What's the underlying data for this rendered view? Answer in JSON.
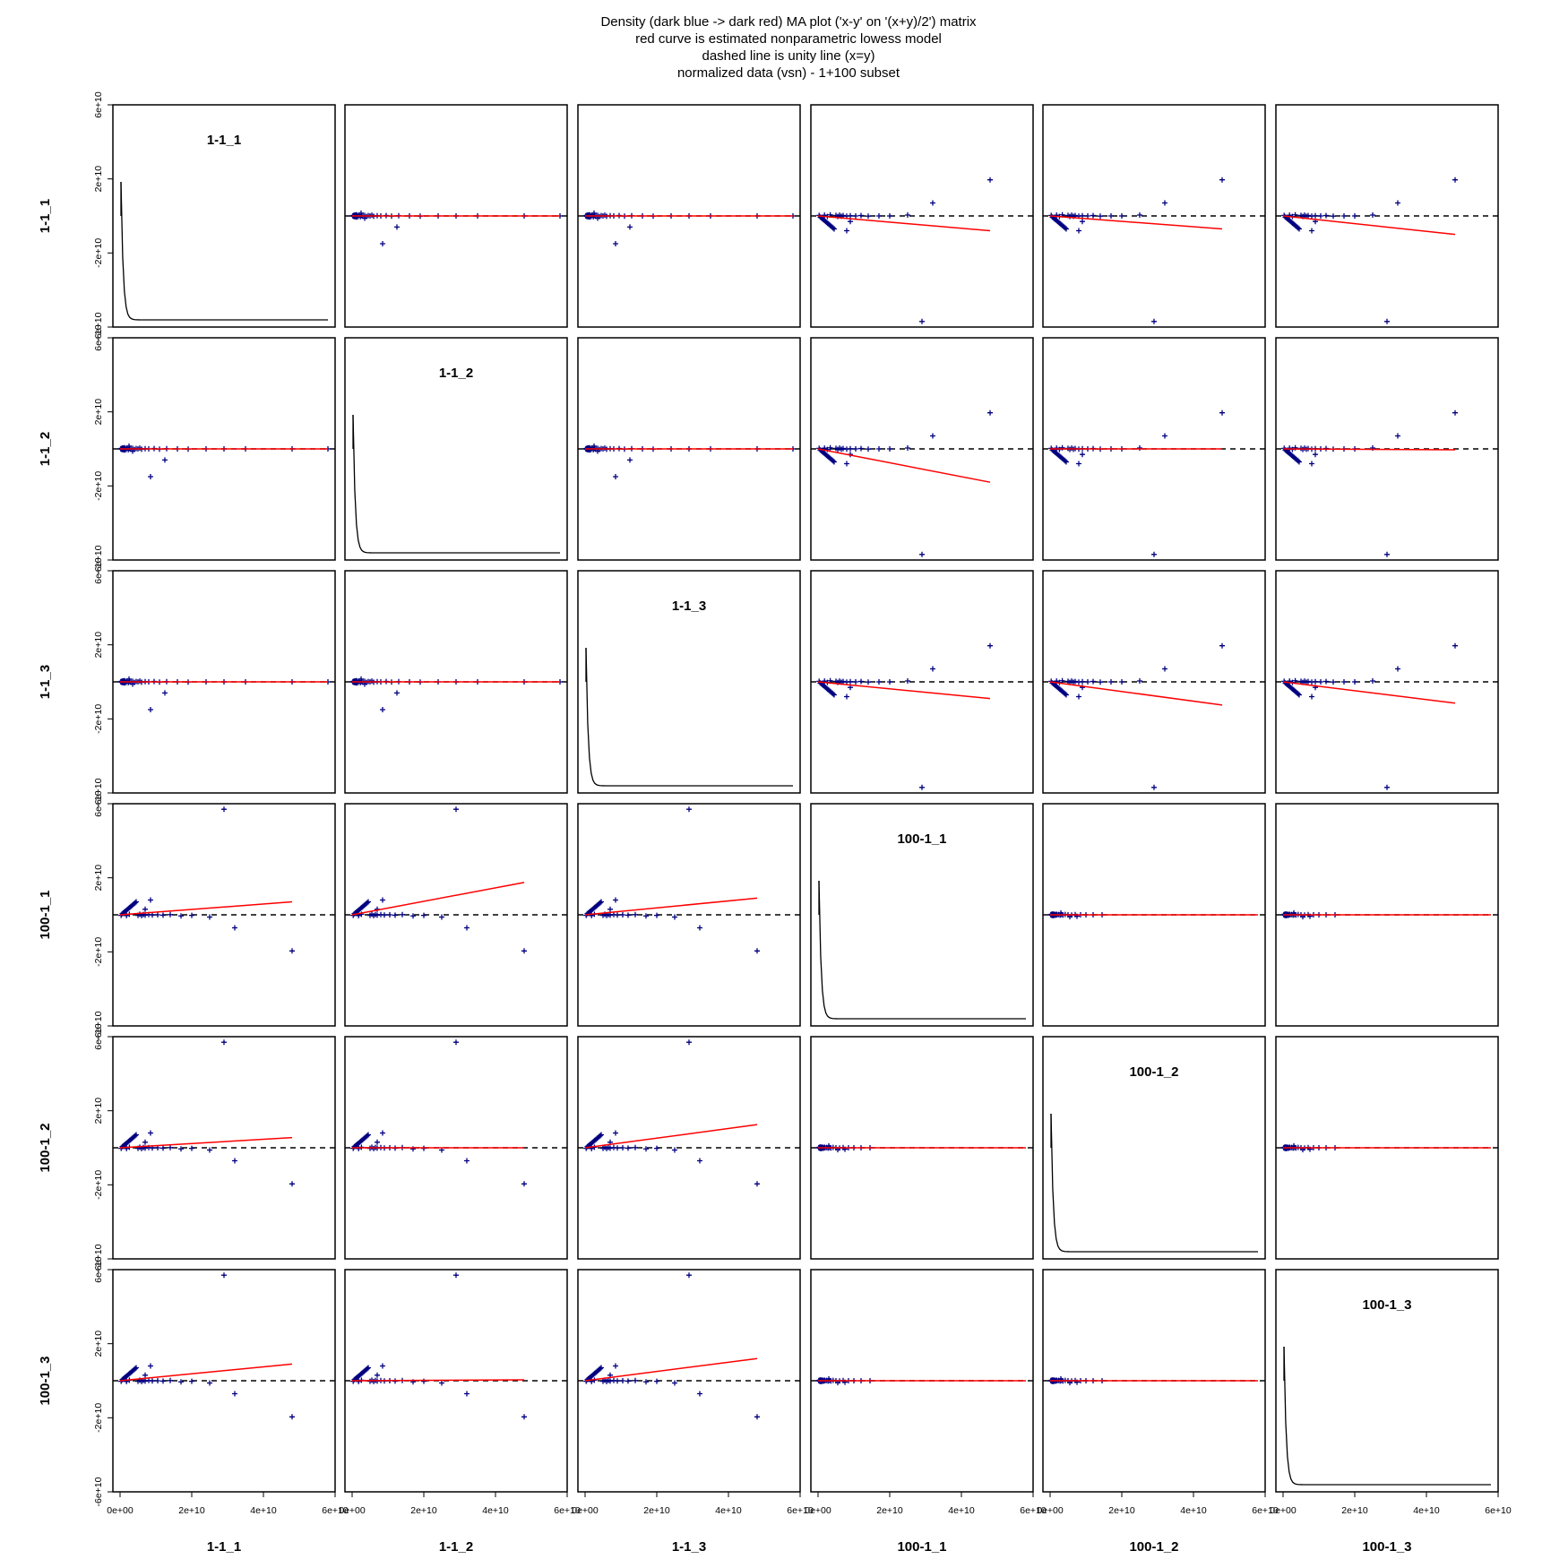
{
  "title": {
    "lines": [
      "Density (dark blue -> dark red) MA plot ('x-y' on '(x+y)/2') matrix",
      "red curve is estimated nonparametric lowess model",
      "dashed line is unity line (x=y)",
      "normalized data (vsn) - 1+100 subset"
    ]
  },
  "chart_data": {
    "type": "scatter",
    "layout": "scatterplot-matrix",
    "variables": [
      "1-1_1",
      "1-1_2",
      "1-1_3",
      "100-1_1",
      "100-1_2",
      "100-1_3"
    ],
    "xlim": [
      -2000000000.0,
      60000000000.0
    ],
    "ylim": [
      -60000000000.0,
      60000000000.0
    ],
    "x_ticks": [
      0,
      20000000000.0,
      40000000000.0,
      60000000000.0
    ],
    "x_tick_labels": [
      "0e+00",
      "2e+10",
      "4e+10",
      "6e+10"
    ],
    "y_ticks": [
      -60000000000.0,
      -20000000000.0,
      20000000000.0,
      60000000000.0
    ],
    "y_tick_labels": [
      "-6e+10",
      "-2e+10",
      "2e+10",
      "6e+10"
    ],
    "point_color": "#000080",
    "lowess_color": "#ff0000",
    "unity_line": "dashed",
    "point_groups": {
      "A": {
        "x": [
          200000000,
          300000000,
          400000000,
          500000000,
          600000000,
          700000000,
          800000000,
          900000000,
          1000000000,
          1100000000,
          1200000000,
          1300000000,
          1500000000,
          1700000000,
          2000000000,
          2300000000,
          2600000000,
          3000000000,
          3500000000,
          4000000000,
          4500000000,
          5000000000,
          5500000000,
          6000000000,
          7000000000,
          8000000000,
          9500000000,
          11000000000,
          13000000000,
          16000000000,
          19000000000,
          24000000000,
          29000000000,
          35000000000,
          48000000000,
          58000000000,
          2500000000,
          3500000000,
          8500000000,
          12500000000
        ],
        "y": [
          0,
          200000000,
          -200000000,
          300000000,
          -300000000,
          400000000,
          -400000000,
          100000000,
          500000000,
          -500000000,
          600000000,
          -600000000,
          300000000,
          -300000000,
          400000000,
          -400000000,
          200000000,
          -200000000,
          300000000,
          -300000000,
          200000000,
          0,
          400000000,
          -200000000,
          100000000,
          0,
          200000000,
          -100000000,
          100000000,
          0,
          -100000000,
          0,
          0,
          0,
          0,
          0,
          1500000000,
          -1200000000,
          -15000000000,
          -6000000000
        ]
      },
      "B": {
        "x": [
          200000000,
          300000000,
          400000000,
          500000000,
          600000000,
          700000000,
          800000000,
          900000000,
          1000000000,
          1100000000,
          1200000000,
          1400000000,
          1600000000,
          1800000000,
          2000000000,
          2400000000,
          2800000000,
          3200000000,
          3600000000,
          4200000000,
          5000000000,
          6000000000,
          7000000000,
          8500000000,
          10000000000,
          12000000000,
          14500000000,
          3000000000,
          5500000000,
          7500000000
        ],
        "y": [
          0,
          200000000,
          -200000000,
          300000000,
          -300000000,
          400000000,
          -400000000,
          200000000,
          -200000000,
          300000000,
          -300000000,
          200000000,
          -200000000,
          300000000,
          0,
          200000000,
          -200000000,
          100000000,
          -100000000,
          200000000,
          0,
          -100000000,
          100000000,
          0,
          0,
          0,
          0,
          1000000000,
          -1000000000,
          -800000000
        ]
      },
      "C": {
        "x": [
          300000000,
          600000000,
          900000000,
          1200000000,
          1500000000,
          1800000000,
          2100000000,
          2400000000,
          2700000000,
          3000000000,
          3300000000,
          3600000000,
          3900000000,
          4200000000,
          4500000000,
          5000000000,
          5500000000,
          6000000000,
          6500000000,
          7000000000,
          8000000000,
          9000000000,
          10500000000,
          12000000000,
          14000000000,
          17000000000,
          20000000000,
          25000000000,
          32000000000,
          48000000000,
          8000000000,
          9000000000,
          1800000000,
          2600000000,
          3400000000
        ],
        "y": [
          300000000,
          -600000000,
          -1000000000,
          -1500000000,
          -2000000000,
          -2500000000,
          -3000000000,
          -3500000000,
          -4000000000,
          -4500000000,
          -5000000000,
          -5500000000,
          -6000000000,
          -6500000000,
          -7000000000,
          300000000,
          -300000000,
          400000000,
          -200000000,
          200000000,
          -100000000,
          100000000,
          0,
          200000000,
          -100000000,
          0,
          0,
          500000000,
          7000000000,
          19500000000,
          -8000000000,
          -3000000000,
          400000000,
          -300000000,
          600000000
        ]
      },
      "D": {
        "x": [
          300000000,
          600000000,
          900000000,
          1200000000,
          1500000000,
          1800000000,
          2100000000,
          2400000000,
          2700000000,
          3000000000,
          3300000000,
          3600000000,
          3900000000,
          4200000000,
          4500000000,
          5000000000,
          5500000000,
          6000000000,
          6500000000,
          7000000000,
          8000000000,
          9000000000,
          10500000000,
          12000000000,
          14000000000,
          17000000000,
          20000000000,
          25000000000,
          32000000000,
          48000000000,
          8500000000,
          7000000000,
          1800000000,
          2600000000
        ],
        "y": [
          -300000000,
          600000000,
          1000000000,
          1500000000,
          2000000000,
          2500000000,
          3000000000,
          3500000000,
          4000000000,
          4500000000,
          5000000000,
          5500000000,
          6000000000,
          6500000000,
          7000000000,
          -300000000,
          300000000,
          -400000000,
          200000000,
          -200000000,
          100000000,
          -100000000,
          0,
          -200000000,
          100000000,
          -600000000,
          -300000000,
          -1200000000,
          -7000000000,
          -19500000000,
          8000000000,
          3000000000,
          -400000000,
          300000000
        ]
      },
      "E": {
        "x": [
          29000000000
        ],
        "y": [
          -57000000000
        ]
      },
      "F": {
        "x": [
          29000000000
        ],
        "y": [
          57000000000
        ]
      }
    },
    "panels": [
      {
        "row": 0,
        "col": 0,
        "kind": "density",
        "label": "1-1_1"
      },
      {
        "row": 0,
        "col": 1,
        "kind": "scatter",
        "points": "A",
        "lowess": [
          [
            0,
            0
          ],
          [
            58000000000,
            0
          ]
        ]
      },
      {
        "row": 0,
        "col": 2,
        "kind": "scatter",
        "points": "A",
        "lowess": [
          [
            0,
            0
          ],
          [
            58000000000,
            0
          ]
        ]
      },
      {
        "row": 0,
        "col": 3,
        "kind": "scatter",
        "points": "C",
        "extra": "E",
        "lowess": [
          [
            0,
            0
          ],
          [
            48000000000,
            -8000000000
          ]
        ]
      },
      {
        "row": 0,
        "col": 4,
        "kind": "scatter",
        "points": "C",
        "extra": "E",
        "lowess": [
          [
            0,
            0
          ],
          [
            48000000000,
            -7000000000
          ]
        ]
      },
      {
        "row": 0,
        "col": 5,
        "kind": "scatter",
        "points": "C",
        "extra": "E",
        "lowess": [
          [
            0,
            0
          ],
          [
            48000000000,
            -10000000000
          ]
        ]
      },
      {
        "row": 1,
        "col": 0,
        "kind": "scatter",
        "points": "A",
        "lowess": [
          [
            0,
            0
          ],
          [
            58000000000,
            0
          ]
        ]
      },
      {
        "row": 1,
        "col": 1,
        "kind": "density",
        "label": "1-1_2"
      },
      {
        "row": 1,
        "col": 2,
        "kind": "scatter",
        "points": "A",
        "lowess": [
          [
            0,
            0
          ],
          [
            58000000000,
            0
          ]
        ]
      },
      {
        "row": 1,
        "col": 3,
        "kind": "scatter",
        "points": "C",
        "extra": "E",
        "lowess": [
          [
            0,
            0
          ],
          [
            48000000000,
            -18000000000
          ]
        ]
      },
      {
        "row": 1,
        "col": 4,
        "kind": "scatter",
        "points": "C",
        "extra": "E",
        "lowess": [
          [
            0,
            0
          ],
          [
            48000000000,
            0
          ]
        ]
      },
      {
        "row": 1,
        "col": 5,
        "kind": "scatter",
        "points": "C",
        "extra": "E",
        "lowess": [
          [
            0,
            0
          ],
          [
            48000000000,
            -500000000
          ]
        ]
      },
      {
        "row": 2,
        "col": 0,
        "kind": "scatter",
        "points": "A",
        "lowess": [
          [
            0,
            0
          ],
          [
            58000000000,
            0
          ]
        ]
      },
      {
        "row": 2,
        "col": 1,
        "kind": "scatter",
        "points": "A",
        "lowess": [
          [
            0,
            0
          ],
          [
            58000000000,
            0
          ]
        ]
      },
      {
        "row": 2,
        "col": 2,
        "kind": "density",
        "label": "1-1_3"
      },
      {
        "row": 2,
        "col": 3,
        "kind": "scatter",
        "points": "C",
        "extra": "E",
        "lowess": [
          [
            0,
            0
          ],
          [
            48000000000,
            -9000000000
          ]
        ]
      },
      {
        "row": 2,
        "col": 4,
        "kind": "scatter",
        "points": "C",
        "extra": "E",
        "lowess": [
          [
            0,
            0
          ],
          [
            48000000000,
            -12500000000
          ]
        ]
      },
      {
        "row": 2,
        "col": 5,
        "kind": "scatter",
        "points": "C",
        "extra": "E",
        "lowess": [
          [
            0,
            0
          ],
          [
            48000000000,
            -11500000000
          ]
        ]
      },
      {
        "row": 3,
        "col": 0,
        "kind": "scatter",
        "points": "D",
        "extra": "F",
        "lowess": [
          [
            0,
            0
          ],
          [
            48000000000,
            7000000000
          ]
        ]
      },
      {
        "row": 3,
        "col": 1,
        "kind": "scatter",
        "points": "D",
        "extra": "F",
        "lowess": [
          [
            0,
            0
          ],
          [
            48000000000,
            17500000000
          ]
        ]
      },
      {
        "row": 3,
        "col": 2,
        "kind": "scatter",
        "points": "D",
        "extra": "F",
        "lowess": [
          [
            0,
            0
          ],
          [
            48000000000,
            9000000000
          ]
        ]
      },
      {
        "row": 3,
        "col": 3,
        "kind": "density",
        "label": "100-1_1"
      },
      {
        "row": 3,
        "col": 4,
        "kind": "scatter",
        "points": "B",
        "lowess": [
          [
            0,
            0
          ],
          [
            58000000000,
            0
          ]
        ]
      },
      {
        "row": 3,
        "col": 5,
        "kind": "scatter",
        "points": "B",
        "lowess": [
          [
            0,
            0
          ],
          [
            58000000000,
            0
          ]
        ]
      },
      {
        "row": 4,
        "col": 0,
        "kind": "scatter",
        "points": "D",
        "extra": "F",
        "lowess": [
          [
            0,
            0
          ],
          [
            48000000000,
            5500000000
          ]
        ]
      },
      {
        "row": 4,
        "col": 1,
        "kind": "scatter",
        "points": "D",
        "extra": "F",
        "lowess": [
          [
            0,
            0
          ],
          [
            48000000000,
            0
          ]
        ]
      },
      {
        "row": 4,
        "col": 2,
        "kind": "scatter",
        "points": "D",
        "extra": "F",
        "lowess": [
          [
            0,
            0
          ],
          [
            48000000000,
            12500000000
          ]
        ]
      },
      {
        "row": 4,
        "col": 3,
        "kind": "scatter",
        "points": "B",
        "lowess": [
          [
            0,
            0
          ],
          [
            58000000000,
            0
          ]
        ]
      },
      {
        "row": 4,
        "col": 4,
        "kind": "density",
        "label": "100-1_2"
      },
      {
        "row": 4,
        "col": 5,
        "kind": "scatter",
        "points": "B",
        "lowess": [
          [
            0,
            0
          ],
          [
            58000000000,
            0
          ]
        ]
      },
      {
        "row": 5,
        "col": 0,
        "kind": "scatter",
        "points": "D",
        "extra": "F",
        "lowess": [
          [
            0,
            0
          ],
          [
            48000000000,
            9000000000
          ]
        ]
      },
      {
        "row": 5,
        "col": 1,
        "kind": "scatter",
        "points": "D",
        "extra": "F",
        "lowess": [
          [
            0,
            0
          ],
          [
            48000000000,
            500000000
          ]
        ]
      },
      {
        "row": 5,
        "col": 2,
        "kind": "scatter",
        "points": "D",
        "extra": "F",
        "lowess": [
          [
            0,
            0
          ],
          [
            48000000000,
            12000000000
          ]
        ]
      },
      {
        "row": 5,
        "col": 3,
        "kind": "scatter",
        "points": "B",
        "lowess": [
          [
            0,
            0
          ],
          [
            58000000000,
            0
          ]
        ]
      },
      {
        "row": 5,
        "col": 4,
        "kind": "scatter",
        "points": "B",
        "lowess": [
          [
            0,
            0
          ],
          [
            58000000000,
            0
          ]
        ]
      },
      {
        "row": 5,
        "col": 5,
        "kind": "density",
        "label": "100-1_3"
      }
    ]
  }
}
